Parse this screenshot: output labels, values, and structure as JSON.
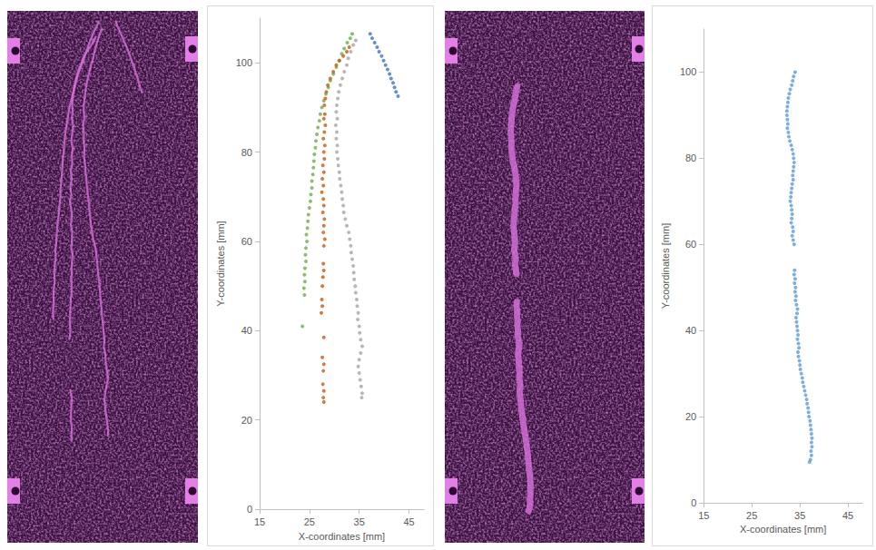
{
  "chart_data": [
    {
      "type": "scatter",
      "x_label": "X-coordinates [mm]",
      "y_label": "Y-coordinates [mm]",
      "xlim": [
        15,
        48
      ],
      "xticks": [
        15,
        25,
        35,
        45
      ],
      "ylim": [
        0,
        110
      ],
      "yticks": [
        0,
        20,
        40,
        60,
        80,
        100
      ],
      "grid": false,
      "marker": "circle",
      "series": [
        {
          "color": "#70ad47",
          "x": [
            33.6,
            33.2,
            32.6,
            32.0,
            31.5,
            31.0,
            30.4,
            29.8,
            29.2,
            28.8,
            28.3,
            27.9,
            27.5,
            27.2,
            27.0,
            26.7,
            26.5,
            26.3,
            26.2,
            26.0,
            25.9,
            25.8,
            25.7,
            25.5,
            25.5,
            25.3,
            25.2,
            25.0,
            24.8,
            24.7,
            24.6,
            24.4,
            24.5,
            24.3,
            24.2,
            24.3,
            24.1,
            24.0,
            24.1,
            23.9,
            24.0,
            23.6
          ],
          "y": [
            106.5,
            105.5,
            104.5,
            103.2,
            102,
            100.5,
            99,
            97.5,
            96,
            94.5,
            93,
            91.5,
            90,
            88.5,
            87,
            85.5,
            84,
            82.5,
            81,
            79.5,
            78,
            76.5,
            75,
            73.5,
            72,
            70.5,
            69,
            67.5,
            66,
            64.5,
            63,
            61.5,
            60,
            58.5,
            57,
            55.5,
            54,
            52.5,
            51,
            49.5,
            48,
            41
          ]
        },
        {
          "color": "#c55a11",
          "x": [
            33.0,
            32.5,
            31.8,
            31.0,
            30.4,
            29.8,
            29.2,
            28.7,
            28.4,
            28.2,
            28.0,
            28.1,
            27.9,
            28.2,
            28.0,
            27.8,
            28.1,
            27.9,
            28.0,
            27.7,
            27.9,
            27.6,
            27.8,
            27.5,
            27.8,
            27.9,
            27.7,
            28.0,
            27.9,
            27.8,
            28.1,
            27.9,
            27.8,
            27.9,
            27.7,
            27.6,
            27.5,
            27.6,
            27.4,
            27.9,
            27.6,
            27.9,
            27.8,
            27.7,
            27.9,
            27.8,
            27.9
          ],
          "y": [
            103.5,
            102.5,
            101.5,
            100.5,
            99.5,
            98,
            96.5,
            95,
            93.5,
            92,
            90.5,
            88.5,
            87.5,
            86,
            84.5,
            83,
            81.5,
            80,
            78.5,
            77,
            75.5,
            74,
            72.5,
            71,
            69.5,
            68,
            66.5,
            65,
            63.5,
            62,
            60.5,
            59,
            55,
            53.5,
            52,
            50,
            47,
            45.5,
            44,
            38.5,
            34,
            32.5,
            31,
            28,
            26.5,
            25,
            24
          ]
        },
        {
          "color": "#a5a5a5",
          "x": [
            34.3,
            33.8,
            33.3,
            32.8,
            32.5,
            32.0,
            31.6,
            31.2,
            30.9,
            30.7,
            30.5,
            30.4,
            30.6,
            30.3,
            30.5,
            30.4,
            30.6,
            30.5,
            30.7,
            30.8,
            31.0,
            31.1,
            31.3,
            31.5,
            31.6,
            31.8,
            31.9,
            32.2,
            32.5,
            32.9,
            33.1,
            33.3,
            33.4,
            33.6,
            33.8,
            33.9,
            34.0,
            34.2,
            34.3,
            34.5,
            34.6,
            34.8,
            34.7,
            35.0,
            35.1,
            35.3,
            35.6,
            35.3,
            35.0,
            34.8,
            35.0,
            35.2,
            35.4,
            35.6,
            35.5
          ],
          "y": [
            105,
            104,
            102.5,
            101,
            99.5,
            98,
            96.5,
            95,
            93.5,
            92,
            90.5,
            89,
            87.5,
            86,
            84.5,
            83,
            81.5,
            80,
            78.5,
            77,
            75.5,
            74,
            72.5,
            71,
            69.5,
            68,
            66.5,
            65,
            63.5,
            62,
            60.5,
            59,
            57.5,
            56,
            54.5,
            53,
            51.5,
            50,
            48.5,
            47,
            45.5,
            44,
            42.5,
            41,
            39.5,
            38,
            36.5,
            35,
            33.5,
            32,
            30.5,
            29,
            27.5,
            26,
            25
          ]
        },
        {
          "color": "#4472c4",
          "x": [
            37.2,
            37.6,
            38.1,
            38.6,
            39.0,
            39.5,
            39.9,
            40.3,
            40.7,
            41.1,
            41.4,
            41.8,
            42.1,
            42.4,
            42.8
          ],
          "y": [
            106.5,
            105.5,
            104.5,
            103.5,
            102.5,
            101.5,
            100.5,
            99.5,
            98.5,
            97.5,
            96.5,
            95.5,
            94.5,
            93.5,
            92.5
          ]
        }
      ]
    },
    {
      "type": "scatter",
      "x_label": "X-coordinates [mm]",
      "y_label": "Y-coordinates [mm]",
      "xlim": [
        15,
        48
      ],
      "xticks": [
        15,
        25,
        35,
        45
      ],
      "ylim": [
        0,
        110
      ],
      "yticks": [
        0,
        20,
        40,
        60,
        80,
        100
      ],
      "grid": false,
      "marker": "circle",
      "series": [
        {
          "color": "#5b9bd5",
          "x": [
            34.0,
            33.7,
            33.5,
            33.3,
            33.0,
            32.8,
            32.6,
            32.5,
            32.4,
            32.3,
            32.3,
            32.4,
            32.5,
            32.4,
            32.6,
            32.7,
            32.9,
            33.2,
            33.4,
            33.6,
            33.7,
            33.8,
            33.7,
            33.6,
            33.5,
            33.6,
            33.4,
            33.3,
            33.2,
            33.1,
            33.0,
            33.2,
            33.3,
            33.4,
            33.3,
            33.2,
            33.5,
            33.6,
            33.4,
            33.6,
            33.8,
            33.9,
            33.8,
            34.0,
            33.9,
            34.1,
            34.0,
            34.2,
            34.1,
            34.3,
            34.5,
            34.4,
            34.2,
            34.3,
            34.4,
            34.5,
            34.6,
            34.5,
            34.7,
            34.8,
            34.6,
            34.7,
            34.9,
            35.0,
            35.1,
            35.3,
            35.5,
            35.6,
            35.8,
            36.0,
            36.2,
            36.4,
            36.5,
            36.7,
            36.8,
            36.9,
            37.1,
            37.2,
            37.3,
            37.4,
            37.5,
            37.4,
            37.5,
            37.3,
            37.4,
            37.2,
            37.0
          ],
          "y": [
            100,
            99,
            98,
            97,
            96,
            95,
            94,
            93,
            92,
            91,
            90,
            89,
            88,
            87,
            86,
            85,
            84,
            83,
            82,
            81,
            80,
            79,
            78,
            77,
            76,
            75,
            74,
            73,
            72,
            71,
            70,
            69,
            68,
            67,
            66,
            65,
            64,
            63,
            62,
            61,
            60,
            54,
            53,
            52,
            51,
            50,
            49,
            48,
            47,
            46,
            45,
            44,
            43,
            42,
            41,
            40,
            39,
            38,
            37,
            36,
            35,
            34,
            33,
            32,
            31,
            30,
            29,
            28,
            27,
            26,
            25,
            24,
            23,
            22,
            21,
            20,
            19,
            18,
            17,
            16,
            15,
            14,
            13,
            12,
            11,
            10,
            9.5
          ]
        }
      ]
    }
  ]
}
